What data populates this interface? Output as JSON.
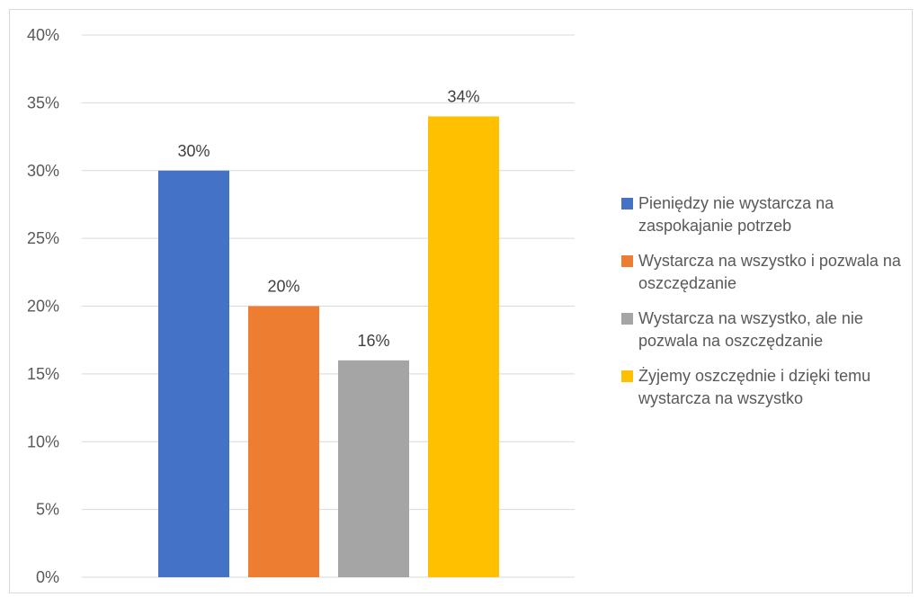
{
  "chart_data": {
    "type": "bar",
    "title": "",
    "xlabel": "",
    "ylabel": "",
    "ylim": [
      0,
      40
    ],
    "yticks": [
      "0%",
      "5%",
      "10%",
      "15%",
      "20%",
      "25%",
      "30%",
      "35%",
      "40%"
    ],
    "ytick_values": [
      0,
      5,
      10,
      15,
      20,
      25,
      30,
      35,
      40
    ],
    "grid": true,
    "legend_position": "right",
    "series": [
      {
        "name": "Pieniędzy nie wystarcza na zaspokajanie potrzeb",
        "value": 30,
        "label": "30%",
        "color": "#4472c4"
      },
      {
        "name": "Wystarcza na wszystko i pozwala na oszczędzanie",
        "value": 20,
        "label": "20%",
        "color": "#ed7d31"
      },
      {
        "name": "Wystarcza na wszystko, ale nie pozwala na oszczędzanie",
        "value": 16,
        "label": "16%",
        "color": "#a5a5a5"
      },
      {
        "name": "Żyjemy oszczędnie i dzięki temu wystarcza na wszystko",
        "value": 34,
        "label": "34%",
        "color": "#ffc000"
      }
    ]
  }
}
